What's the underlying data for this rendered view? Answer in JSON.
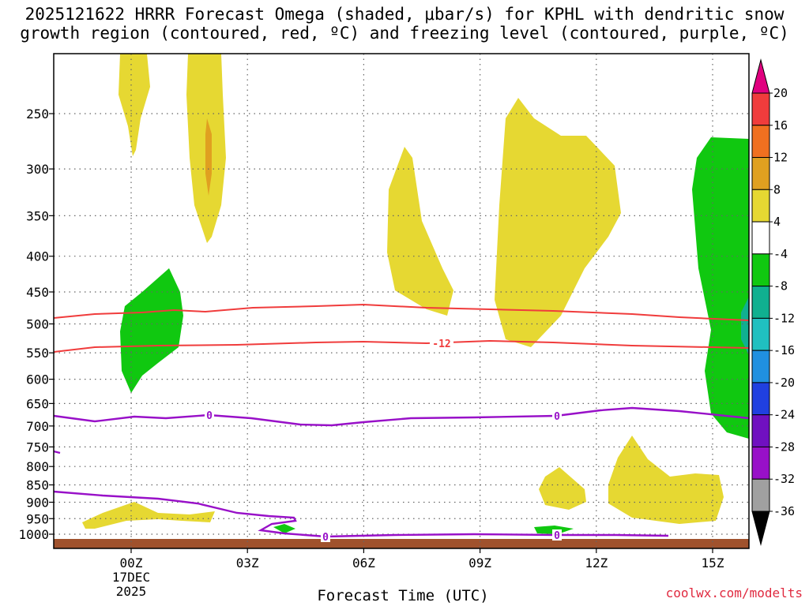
{
  "header": {
    "title_line1": "2025121622 HRRR Forecast Omega (shaded, μbar/s) for KPHL with dendritic snow",
    "title_line2": "growth region (contoured, red, ºC) and freezing level (contoured, purple, ºC)"
  },
  "credit": "coolwx.com/modelts",
  "chart_data": {
    "type": "time-height contour",
    "title": "2025121622 HRRR Forecast Omega (shaded, μbar/s) for KPHL with dendritic snow growth region (contoured, red, ºC) and freezing level (contoured, purple, ºC)",
    "xlabel": "Forecast Time (UTC)",
    "ylabel": "",
    "x_range_hours": [
      -2,
      16
    ],
    "x_ticks": [
      {
        "hour": 0,
        "label": "00Z",
        "sublabel1": "17DEC",
        "sublabel2": "2025"
      },
      {
        "hour": 3,
        "label": "03Z"
      },
      {
        "hour": 6,
        "label": "06Z"
      },
      {
        "hour": 9,
        "label": "09Z"
      },
      {
        "hour": 12,
        "label": "12Z"
      },
      {
        "hour": 15,
        "label": "15Z"
      }
    ],
    "y_scale": "log pressure",
    "y_ticks_hpa": [
      250,
      300,
      350,
      400,
      450,
      500,
      550,
      600,
      650,
      700,
      750,
      800,
      850,
      900,
      950,
      1000
    ],
    "colorbar_labels": [
      "20",
      "16",
      "12",
      "8",
      "4",
      "-4",
      "-8",
      "-12",
      "-16",
      "-20",
      "-24",
      "-28",
      "-32",
      "-36"
    ],
    "colorbar_colors": [
      "#e0007f",
      "#f03c3c",
      "#f07020",
      "#e0a020",
      "#e6d832",
      "#ffffff",
      "#10c810",
      "#10b090",
      "#20c0c0",
      "#2090e0",
      "#2040e0",
      "#7010c0",
      "#9810c8",
      "#a0a0a0",
      "#000000"
    ],
    "contour_labels": {
      "dgz": "-12",
      "freezing": "0"
    },
    "grid": true
  }
}
